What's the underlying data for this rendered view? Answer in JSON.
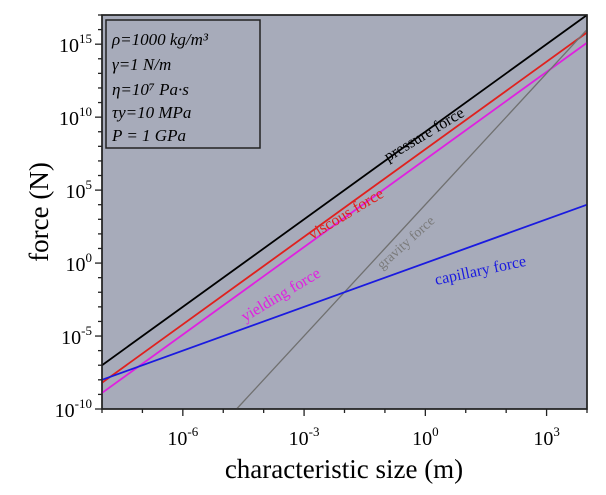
{
  "chart_data": {
    "type": "line",
    "xlabel": "characteristic size (m)",
    "ylabel": "force (N)",
    "xscale": "log",
    "yscale": "log",
    "xlim_log10": [
      -8,
      4
    ],
    "ylim_log10": [
      -10,
      17
    ],
    "xticks": [
      {
        "exp": -6,
        "label": "10",
        "sup": "-6"
      },
      {
        "exp": -3,
        "label": "10",
        "sup": "-3"
      },
      {
        "exp": 0,
        "label": "10",
        "sup": "0"
      },
      {
        "exp": 3,
        "label": "10",
        "sup": "3"
      }
    ],
    "yticks": [
      {
        "exp": -10,
        "label": "10",
        "sup": "-10"
      },
      {
        "exp": -5,
        "label": "10",
        "sup": "-5"
      },
      {
        "exp": 0,
        "label": "10",
        "sup": "0"
      },
      {
        "exp": 5,
        "label": "10",
        "sup": "5"
      },
      {
        "exp": 10,
        "label": "10",
        "sup": "10"
      },
      {
        "exp": 15,
        "label": "10",
        "sup": "15"
      }
    ],
    "series": [
      {
        "name": "pressure force",
        "color": "#000000",
        "log10_x": [
          -8,
          4
        ],
        "log10_y": [
          -7,
          17
        ]
      },
      {
        "name": "viscous force",
        "color": "#e0201e",
        "log10_x": [
          -8,
          4
        ],
        "log10_y": [
          -8.2,
          15.8
        ]
      },
      {
        "name": "yielding force",
        "color": "#e020e0",
        "log10_x": [
          -8,
          4
        ],
        "log10_y": [
          -8.9,
          15.1
        ]
      },
      {
        "name": "gravity force",
        "color": "#707070",
        "log10_x": [
          -4.67,
          4
        ],
        "log10_y": [
          -10,
          16
        ]
      },
      {
        "name": "capillary force",
        "color": "#1a1ae0",
        "log10_x": [
          -8,
          4
        ],
        "log10_y": [
          -8,
          4
        ]
      }
    ],
    "params": [
      "ρ=1000 kg/m³",
      "γ=1 N/m",
      "η=10⁷ Pa·s",
      "τy=10 MPa",
      "P = 1 GPa"
    ],
    "background": "#a7abba"
  }
}
